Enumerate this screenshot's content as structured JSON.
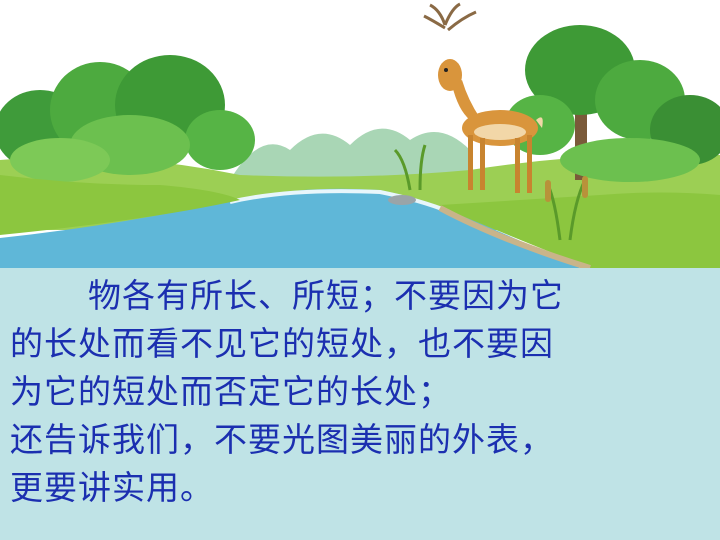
{
  "slide": {
    "lines": [
      "物各有所长、所短；不要因为它",
      "的长处而看不见它的短处，也不要因",
      "为它的短处而否定它的长处；",
      "还告诉我们，不要光图美丽的外表，",
      "更要讲实用。"
    ]
  },
  "colors": {
    "text": "#1b2fb0",
    "panel": "#bfe3e6",
    "water": "#5fb7d8",
    "grass": "#8cc63f"
  }
}
